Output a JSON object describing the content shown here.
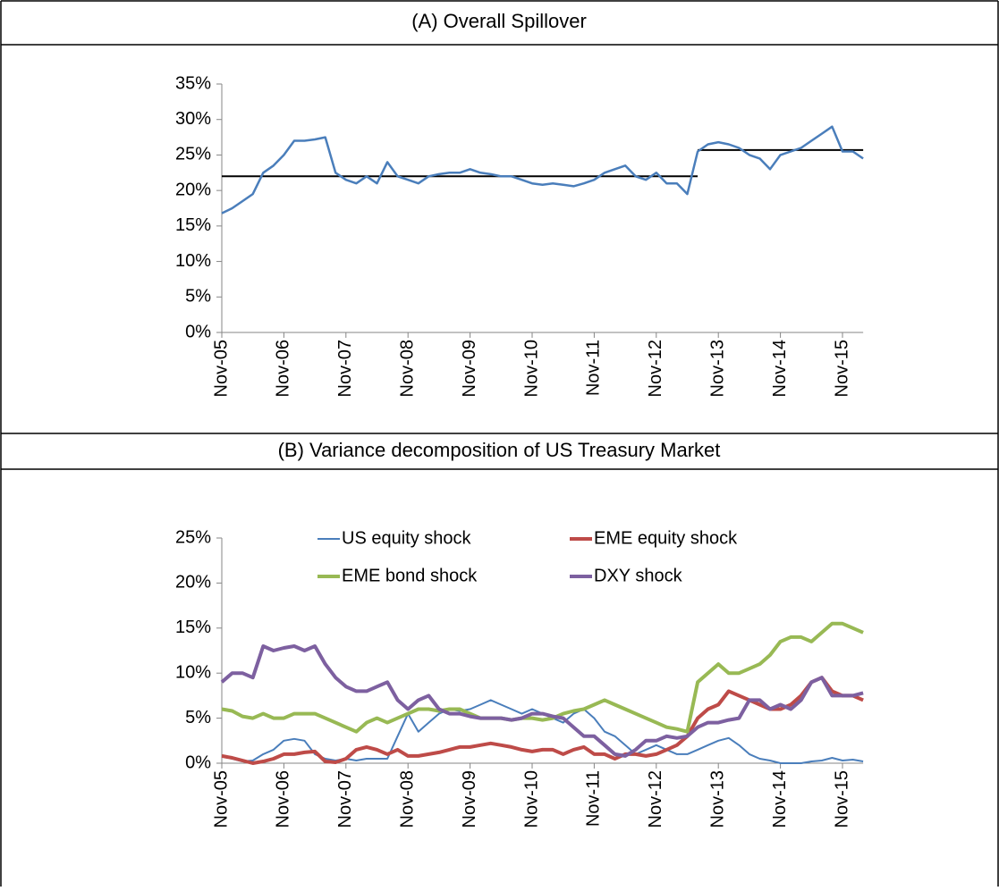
{
  "chart_data": [
    {
      "type": "line",
      "title": "(A) Overall Spillover",
      "x": [
        "Nov-05",
        "Jan-06",
        "Mar-06",
        "May-06",
        "Jul-06",
        "Sep-06",
        "Nov-06",
        "Jan-07",
        "Mar-07",
        "May-07",
        "Jul-07",
        "Sep-07",
        "Nov-07",
        "Jan-08",
        "Mar-08",
        "May-08",
        "Jul-08",
        "Sep-08",
        "Nov-08",
        "Jan-09",
        "Mar-09",
        "May-09",
        "Jul-09",
        "Sep-09",
        "Nov-09",
        "Jan-10",
        "Mar-10",
        "May-10",
        "Jul-10",
        "Sep-10",
        "Nov-10",
        "Jan-11",
        "Mar-11",
        "May-11",
        "Jul-11",
        "Sep-11",
        "Nov-11",
        "Jan-12",
        "Mar-12",
        "May-12",
        "Jul-12",
        "Sep-12",
        "Nov-12",
        "Jan-13",
        "Mar-13",
        "May-13",
        "Jul-13",
        "Sep-13",
        "Nov-13",
        "Jan-14",
        "Mar-14",
        "May-14",
        "Jul-14",
        "Sep-14",
        "Nov-14",
        "Jan-15",
        "Mar-15",
        "May-15",
        "Jul-15",
        "Sep-15",
        "Nov-15",
        "Jan-16",
        "Mar-16"
      ],
      "xticks": [
        "Nov-05",
        "Nov-06",
        "Nov-07",
        "Nov-08",
        "Nov-09",
        "Nov-10",
        "Nov-11",
        "Nov-12",
        "Nov-13",
        "Nov-14",
        "Nov-15"
      ],
      "series": [
        {
          "color": "#4a7ebb",
          "line_width": 2.5,
          "values": [
            16.8,
            17.5,
            18.5,
            19.5,
            22.5,
            23.5,
            25,
            27,
            27,
            27.2,
            27.5,
            22.5,
            21.5,
            21,
            22,
            21,
            24,
            22,
            21.5,
            21,
            22,
            22.3,
            22.5,
            22.5,
            23,
            22.5,
            22.3,
            22,
            22,
            21.5,
            21,
            20.8,
            21,
            20.8,
            20.6,
            21,
            21.5,
            22.5,
            23,
            23.5,
            22,
            21.5,
            22.5,
            21,
            21,
            19.5,
            25.5,
            26.5,
            26.8,
            26.5,
            26,
            25,
            24.5,
            23,
            25,
            25.5,
            26,
            27,
            28,
            29,
            25.5,
            25.5,
            24.5
          ]
        }
      ],
      "reference_lines": [
        {
          "value": 22,
          "from": "Nov-05",
          "to": "Jul-13",
          "color": "#000000"
        },
        {
          "value": 25.7,
          "from": "Jul-13",
          "to": "Mar-16",
          "color": "#000000"
        }
      ],
      "ylim": [
        0,
        35
      ],
      "yticks": [
        {
          "value": 0,
          "label": "0%"
        },
        {
          "value": 5,
          "label": "5%"
        },
        {
          "value": 10,
          "label": "10%"
        },
        {
          "value": 15,
          "label": "15%"
        },
        {
          "value": 20,
          "label": "20%"
        },
        {
          "value": 25,
          "label": "25%"
        },
        {
          "value": 30,
          "label": "30%"
        },
        {
          "value": 35,
          "label": "35%"
        }
      ]
    },
    {
      "type": "line",
      "title": "(B) Variance decomposition of US Treasury Market",
      "x": [
        "Nov-05",
        "Jan-06",
        "Mar-06",
        "May-06",
        "Jul-06",
        "Sep-06",
        "Nov-06",
        "Jan-07",
        "Mar-07",
        "May-07",
        "Jul-07",
        "Sep-07",
        "Nov-07",
        "Jan-08",
        "Mar-08",
        "May-08",
        "Jul-08",
        "Sep-08",
        "Nov-08",
        "Jan-09",
        "Mar-09",
        "May-09",
        "Jul-09",
        "Sep-09",
        "Nov-09",
        "Jan-10",
        "Mar-10",
        "May-10",
        "Jul-10",
        "Sep-10",
        "Nov-10",
        "Jan-11",
        "Mar-11",
        "May-11",
        "Jul-11",
        "Sep-11",
        "Nov-11",
        "Jan-12",
        "Mar-12",
        "May-12",
        "Jul-12",
        "Sep-12",
        "Nov-12",
        "Jan-13",
        "Mar-13",
        "May-13",
        "Jul-13",
        "Sep-13",
        "Nov-13",
        "Jan-14",
        "Mar-14",
        "May-14",
        "Jul-14",
        "Sep-14",
        "Nov-14",
        "Jan-15",
        "Mar-15",
        "May-15",
        "Jul-15",
        "Sep-15",
        "Nov-15",
        "Jan-16",
        "Mar-16"
      ],
      "xticks": [
        "Nov-05",
        "Nov-06",
        "Nov-07",
        "Nov-08",
        "Nov-09",
        "Nov-10",
        "Nov-11",
        "Nov-12",
        "Nov-13",
        "Nov-14",
        "Nov-15"
      ],
      "legend": "top",
      "series": [
        {
          "name": "US equity shock",
          "color": "#4a7ebb",
          "line_width": 2,
          "values": [
            0.8,
            0.5,
            0.2,
            0.3,
            1,
            1.5,
            2.5,
            2.7,
            2.5,
            1,
            0.5,
            0.3,
            0.5,
            0.3,
            0.5,
            0.5,
            0.5,
            3,
            5.5,
            3.5,
            4.5,
            5.5,
            6,
            5.8,
            6,
            6.5,
            7,
            6.5,
            6,
            5.5,
            6,
            5.5,
            5,
            4.5,
            5.5,
            6,
            5,
            3.5,
            3,
            2,
            1,
            1.5,
            2,
            1.5,
            1,
            1,
            1.5,
            2,
            2.5,
            2.8,
            2,
            1,
            0.5,
            0.3,
            0,
            0,
            0,
            0.2,
            0.3,
            0.6,
            0.3,
            0.4,
            0.2
          ]
        },
        {
          "name": "EME equity shock",
          "color": "#be4b48",
          "line_width": 4,
          "values": [
            0.8,
            0.6,
            0.3,
            0,
            0.2,
            0.5,
            1,
            1,
            1.2,
            1.3,
            0.2,
            0.1,
            0.5,
            1.5,
            1.8,
            1.5,
            1,
            1.5,
            0.8,
            0.8,
            1,
            1.2,
            1.5,
            1.8,
            1.8,
            2,
            2.2,
            2,
            1.8,
            1.5,
            1.3,
            1.5,
            1.5,
            1,
            1.5,
            1.8,
            1,
            1,
            0.5,
            1,
            1,
            0.8,
            1,
            1.5,
            2,
            3,
            5,
            6,
            6.5,
            8,
            7.5,
            7,
            6.5,
            6,
            6,
            6.5,
            7.5,
            9,
            9.5,
            8,
            7.5,
            7.5,
            7
          ]
        },
        {
          "name": "EME bond shock",
          "color": "#98b954",
          "line_width": 4,
          "values": [
            6,
            5.8,
            5.2,
            5,
            5.5,
            5,
            5,
            5.5,
            5.5,
            5.5,
            5,
            4.5,
            4,
            3.5,
            4.5,
            5,
            4.5,
            5,
            5.5,
            6,
            6,
            5.8,
            6,
            6,
            5.5,
            5,
            5,
            5,
            4.8,
            5,
            5,
            4.8,
            5,
            5.5,
            5.8,
            6,
            6.5,
            7,
            6.5,
            6,
            5.5,
            5,
            4.5,
            4,
            3.8,
            3.5,
            9,
            10,
            11,
            10,
            10,
            10.5,
            11,
            12,
            13.5,
            14,
            14,
            13.5,
            14.5,
            15.5,
            15.5,
            15,
            14.5
          ]
        },
        {
          "name": "DXY shock",
          "color": "#7d60a0",
          "line_width": 4,
          "values": [
            9,
            10,
            10,
            9.5,
            13,
            12.5,
            12.8,
            13,
            12.5,
            13,
            11,
            9.5,
            8.5,
            8,
            8,
            8.5,
            9,
            7,
            6,
            7,
            7.5,
            6,
            5.5,
            5.5,
            5.2,
            5,
            5,
            5,
            4.8,
            5,
            5.5,
            5.5,
            5.2,
            5,
            4,
            3,
            3,
            2,
            1,
            0.8,
            1.5,
            2.5,
            2.5,
            3,
            2.8,
            3,
            4,
            4.5,
            4.5,
            4.8,
            5,
            7,
            7,
            6,
            6.5,
            6,
            7,
            9,
            9.5,
            7.5,
            7.5,
            7.5,
            7.8
          ]
        }
      ],
      "ylim": [
        0,
        25
      ],
      "yticks": [
        {
          "value": 0,
          "label": "0%"
        },
        {
          "value": 5,
          "label": "5%"
        },
        {
          "value": 10,
          "label": "10%"
        },
        {
          "value": 15,
          "label": "15%"
        },
        {
          "value": 20,
          "label": "20%"
        },
        {
          "value": 25,
          "label": "25%"
        }
      ]
    }
  ]
}
